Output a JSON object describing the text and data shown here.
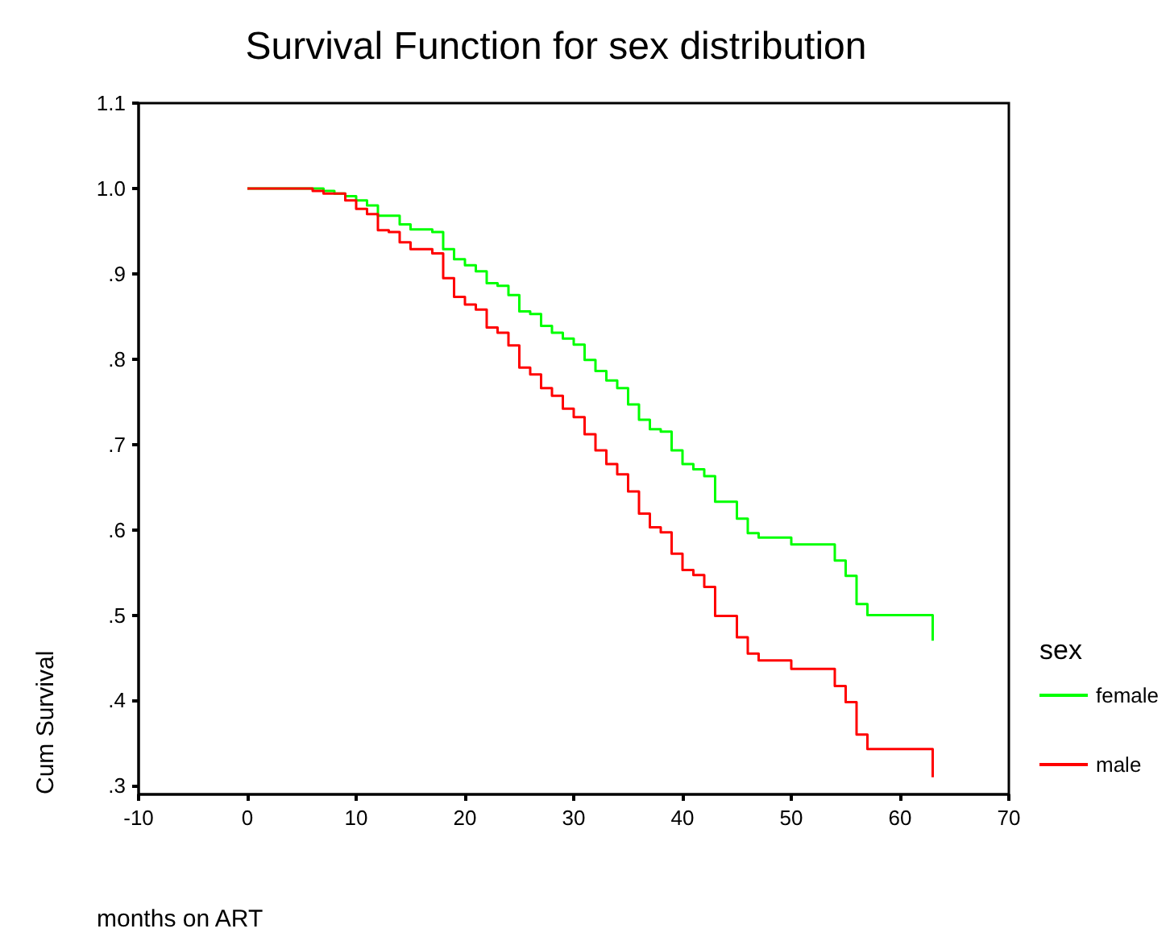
{
  "chart_data": {
    "type": "step",
    "title": "Survival Function for sex distribution",
    "xlabel": "months on ART",
    "ylabel": "Cum Survival",
    "legend_title": "sex",
    "legend": "right",
    "grid": false,
    "xlim": [
      -10,
      70
    ],
    "xticks": [
      -10,
      0,
      10,
      20,
      30,
      40,
      50,
      60,
      70
    ],
    "ylim": [
      0.29,
      1.1
    ],
    "yticks": [
      {
        "value": 0.3,
        "label": ".3"
      },
      {
        "value": 0.4,
        "label": ".4"
      },
      {
        "value": 0.5,
        "label": ".5"
      },
      {
        "value": 0.6,
        "label": ".6"
      },
      {
        "value": 0.7,
        "label": ".7"
      },
      {
        "value": 0.8,
        "label": ".8"
      },
      {
        "value": 0.9,
        "label": ".9"
      },
      {
        "value": 1.0,
        "label": "1.0"
      },
      {
        "value": 1.1,
        "label": "1.1"
      }
    ],
    "series": [
      {
        "name": "female",
        "color": "#00ff00",
        "x": [
          0,
          7,
          8,
          9,
          10,
          11,
          12,
          14,
          15,
          17,
          18,
          19,
          20,
          21,
          22,
          23,
          24,
          25,
          26,
          27,
          28,
          29,
          30,
          31,
          32,
          33,
          34,
          35,
          36,
          37,
          38,
          39,
          40,
          41,
          42,
          43,
          45,
          46,
          47,
          50,
          54,
          55,
          56,
          57,
          63,
          63
        ],
        "values": [
          1.0,
          0.997,
          0.994,
          0.991,
          0.986,
          0.98,
          0.968,
          0.958,
          0.952,
          0.949,
          0.929,
          0.917,
          0.91,
          0.903,
          0.889,
          0.886,
          0.875,
          0.856,
          0.853,
          0.839,
          0.831,
          0.824,
          0.817,
          0.799,
          0.786,
          0.775,
          0.766,
          0.747,
          0.729,
          0.718,
          0.715,
          0.693,
          0.677,
          0.671,
          0.663,
          0.633,
          0.613,
          0.596,
          0.591,
          0.583,
          0.564,
          0.546,
          0.513,
          0.5,
          0.5,
          0.47
        ]
      },
      {
        "name": "male",
        "color": "#ff0000",
        "x": [
          0,
          6,
          7,
          9,
          10,
          11,
          12,
          13,
          14,
          15,
          17,
          18,
          19,
          20,
          21,
          22,
          23,
          24,
          25,
          26,
          27,
          28,
          29,
          30,
          31,
          32,
          33,
          34,
          35,
          36,
          37,
          38,
          39,
          40,
          41,
          42,
          43,
          45,
          46,
          47,
          50,
          54,
          55,
          56,
          57,
          63,
          63
        ],
        "values": [
          1.0,
          0.997,
          0.994,
          0.986,
          0.976,
          0.97,
          0.951,
          0.949,
          0.937,
          0.929,
          0.924,
          0.895,
          0.873,
          0.864,
          0.858,
          0.837,
          0.831,
          0.816,
          0.79,
          0.782,
          0.766,
          0.757,
          0.742,
          0.732,
          0.712,
          0.693,
          0.677,
          0.665,
          0.645,
          0.619,
          0.603,
          0.597,
          0.572,
          0.553,
          0.547,
          0.533,
          0.499,
          0.474,
          0.455,
          0.447,
          0.437,
          0.417,
          0.398,
          0.36,
          0.343,
          0.343,
          0.31
        ]
      }
    ]
  }
}
